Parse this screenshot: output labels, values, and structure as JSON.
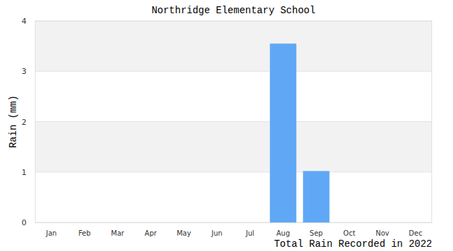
{
  "chart_data": {
    "type": "bar",
    "title": "Northridge Elementary School",
    "y_label": "Rain (mm)",
    "x_label": "Total Rain Recorded in 2022",
    "categories": [
      "Jan",
      "Feb",
      "Mar",
      "Apr",
      "May",
      "Jun",
      "Jul",
      "Aug",
      "Sep",
      "Oct",
      "Nov",
      "Dec"
    ],
    "values": [
      0,
      0,
      0,
      0,
      0,
      0,
      0,
      3.55,
      1.02,
      0,
      0,
      0
    ],
    "color": "#60a8f5",
    "ylim": [
      0,
      4
    ],
    "yticks": [
      0,
      1,
      2,
      3,
      4
    ],
    "grid": true
  }
}
